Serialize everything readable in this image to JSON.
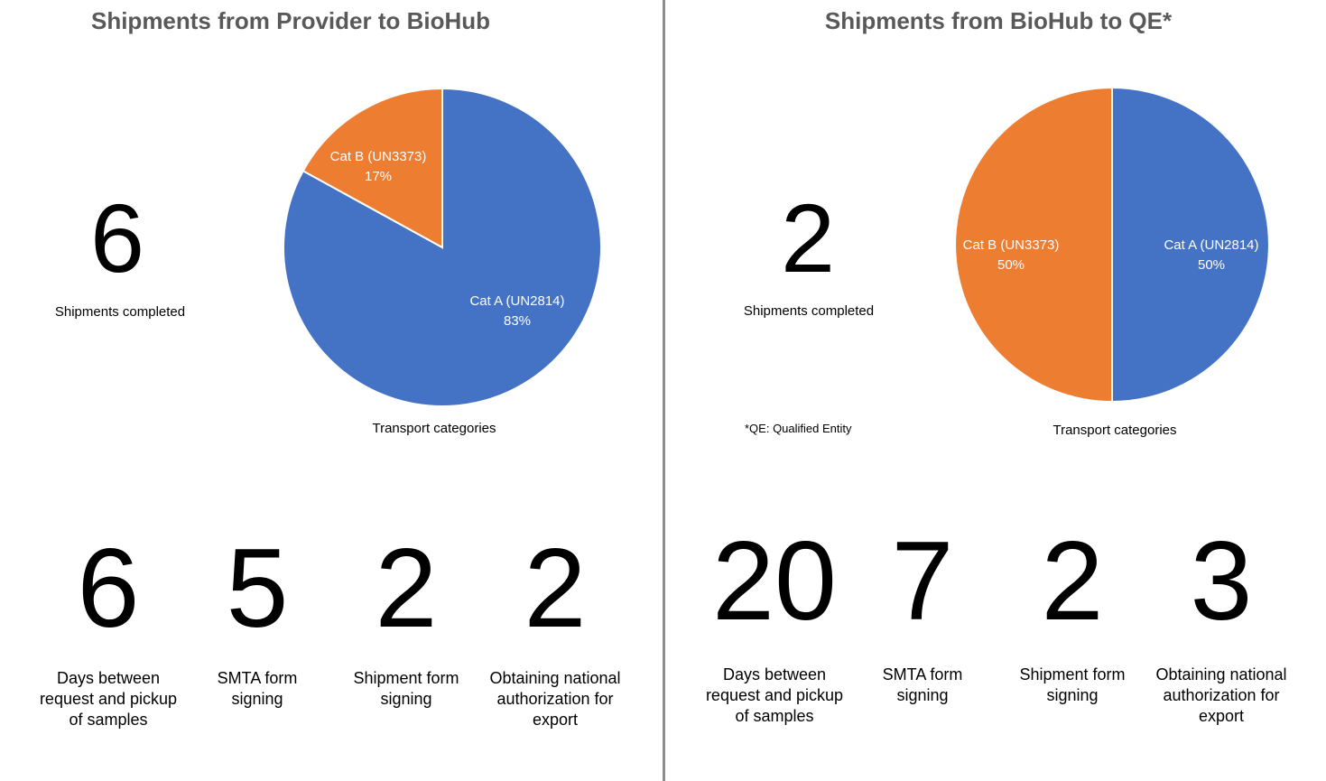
{
  "left_panel": {
    "title": "Shipments from Provider to BioHub",
    "shipments_count": "6",
    "shipments_label": "Shipments completed",
    "chart_caption": "Transport categories",
    "metrics": [
      {
        "value": "6",
        "label": "Days between request and pickup of samples"
      },
      {
        "value": "5",
        "label": "SMTA form signing"
      },
      {
        "value": "2",
        "label": "Shipment form signing"
      },
      {
        "value": "2",
        "label": "Obtaining national authorization for export"
      }
    ]
  },
  "right_panel": {
    "title": "Shipments from BioHub to QE*",
    "shipments_count": "2",
    "shipments_label": "Shipments completed",
    "footnote": "*QE: Qualified Entity",
    "chart_caption": "Transport categories",
    "metrics": [
      {
        "value": "20",
        "label": "Days between request and pickup of samples"
      },
      {
        "value": "7",
        "label": "SMTA form signing"
      },
      {
        "value": "2",
        "label": "Shipment form signing"
      },
      {
        "value": "3",
        "label": "Obtaining national authorization for export"
      }
    ]
  },
  "colors": {
    "cat_a": "#4472C4",
    "cat_b": "#ED7D31"
  },
  "chart_data": [
    {
      "type": "pie",
      "title": "",
      "slices": [
        {
          "name": "Cat A (UN2814)",
          "value": 83,
          "label": "83%"
        },
        {
          "name": "Cat B (UN3373)",
          "value": 17,
          "label": "17%"
        }
      ]
    },
    {
      "type": "pie",
      "title": "",
      "slices": [
        {
          "name": "Cat A (UN2814)",
          "value": 50,
          "label": "50%"
        },
        {
          "name": "Cat B (UN3373)",
          "value": 50,
          "label": "50%"
        }
      ]
    }
  ]
}
